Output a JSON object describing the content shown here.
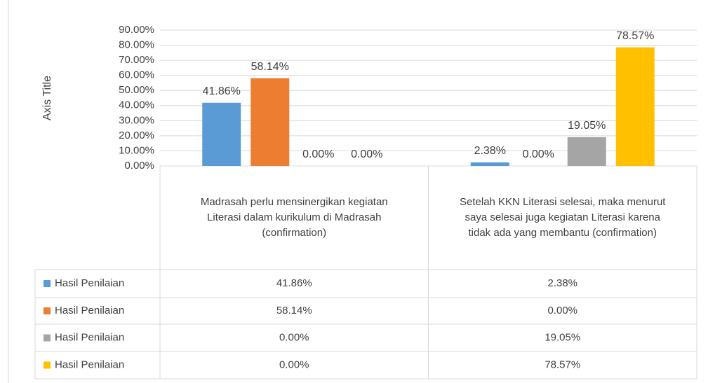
{
  "chart_data": {
    "type": "bar",
    "y_axis_title": "Axis Title",
    "categories": [
      "Madrasah perlu mensinergikan kegiatan Literasi dalam kurikulum di Madrasah (confirmation)",
      "Setelah KKN Literasi selesai, maka menurut saya selesai juga kegiatan Literasi karena tidak ada yang membantu (confirmation)"
    ],
    "series": [
      {
        "name": "Hasil Penilaian",
        "color": "#5b9bd5",
        "values": [
          41.86,
          2.38
        ],
        "value_labels": [
          "41.86%",
          "2.38%"
        ]
      },
      {
        "name": "Hasil Penilaian",
        "color": "#ed7d31",
        "values": [
          58.14,
          0
        ],
        "value_labels": [
          "58.14%",
          "0.00%"
        ]
      },
      {
        "name": "Hasil Penilaian",
        "color": "#a5a5a5",
        "values": [
          0,
          19.05
        ],
        "value_labels": [
          "0.00%",
          "19.05%"
        ]
      },
      {
        "name": "Hasil Penilaian",
        "color": "#ffc000",
        "values": [
          0,
          78.57
        ],
        "value_labels": [
          "0.00%",
          "78.57%"
        ]
      }
    ],
    "ylim": [
      0,
      90
    ],
    "yticks": [
      {
        "value": 0,
        "label": "0.00%"
      },
      {
        "value": 10,
        "label": "10.00%"
      },
      {
        "value": 20,
        "label": "20.00%"
      },
      {
        "value": 30,
        "label": "30.00%"
      },
      {
        "value": 40,
        "label": "40.00%"
      },
      {
        "value": 50,
        "label": "50.00%"
      },
      {
        "value": 60,
        "label": "60.00%"
      },
      {
        "value": 70,
        "label": "70.00%"
      },
      {
        "value": 80,
        "label": "80.00%"
      },
      {
        "value": 90,
        "label": "90.00%"
      }
    ],
    "grid": true,
    "data_table": true
  }
}
